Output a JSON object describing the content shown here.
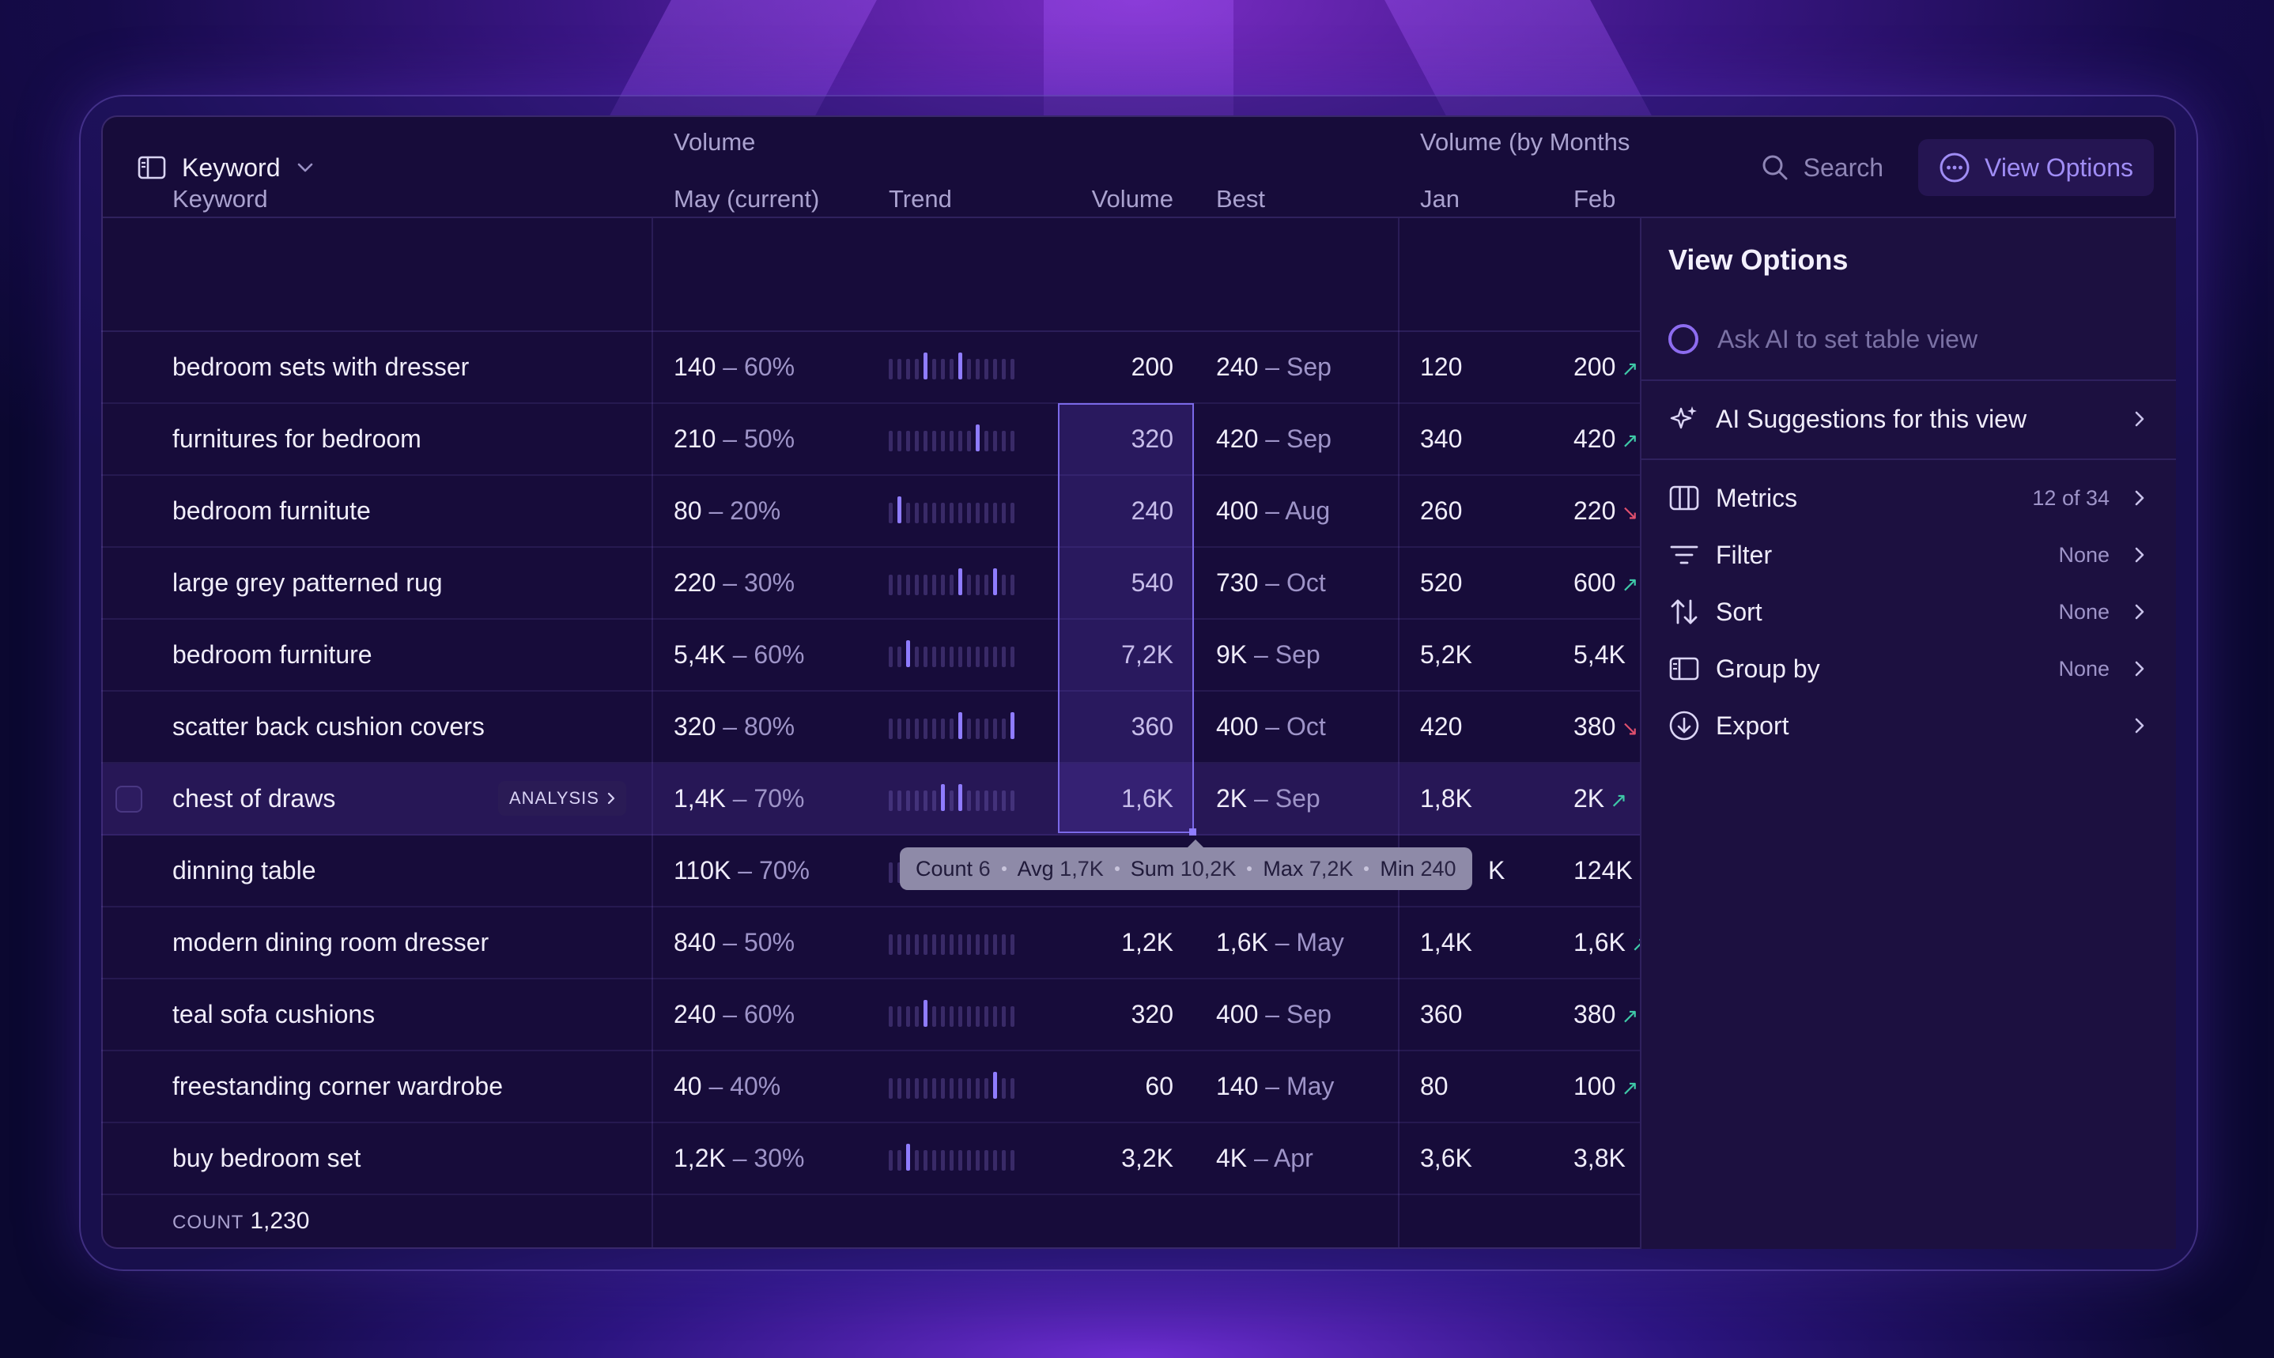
{
  "toolbar": {
    "group_select_label": "Keyword",
    "search_label": "Search",
    "view_options_label": "View Options"
  },
  "table": {
    "group_headers": {
      "volume": "Volume",
      "volume_by_month": "Volume (by Months"
    },
    "columns": {
      "keyword": "Keyword",
      "may": "May (current)",
      "trend": "Trend",
      "volume": "Volume",
      "best": "Best",
      "jan": "Jan",
      "feb": "Feb"
    },
    "rows": [
      {
        "keyword": "bedroom sets with dresser",
        "may": "140",
        "pct": "– 60%",
        "trend": [
          0,
          0,
          0,
          0,
          1,
          0,
          0,
          0,
          1,
          0,
          0,
          0,
          0,
          0,
          0
        ],
        "volume": "200",
        "best": "240",
        "best_month": "– Sep",
        "jan": "120",
        "feb": "200",
        "feb_dir": "up"
      },
      {
        "keyword": "furnitures for bedroom",
        "may": "210",
        "pct": "– 50%",
        "trend": [
          0,
          0,
          0,
          0,
          0,
          0,
          0,
          0,
          0,
          0,
          1,
          0,
          0,
          0,
          0
        ],
        "volume": "320",
        "best": "420",
        "best_month": "– Sep",
        "jan": "340",
        "feb": "420",
        "feb_dir": "up"
      },
      {
        "keyword": "bedroom furnitute",
        "may": "80",
        "pct": "– 20%",
        "trend": [
          0,
          1,
          0,
          0,
          0,
          0,
          0,
          0,
          0,
          0,
          0,
          0,
          0,
          0,
          0
        ],
        "volume": "240",
        "best": "400",
        "best_month": "– Aug",
        "jan": "260",
        "feb": "220",
        "feb_dir": "down"
      },
      {
        "keyword": "large grey patterned rug",
        "may": "220",
        "pct": "– 30%",
        "trend": [
          0,
          0,
          0,
          0,
          0,
          0,
          0,
          0,
          1,
          0,
          0,
          0,
          1,
          0,
          0
        ],
        "volume": "540",
        "best": "730",
        "best_month": "– Oct",
        "jan": "520",
        "feb": "600",
        "feb_dir": "up"
      },
      {
        "keyword": "bedroom furniture",
        "may": "5,4K",
        "pct": "– 60%",
        "trend": [
          0,
          0,
          1,
          0,
          0,
          0,
          0,
          0,
          0,
          0,
          0,
          0,
          0,
          0,
          0
        ],
        "volume": "7,2K",
        "best": "9K",
        "best_month": "– Sep",
        "jan": "5,2K",
        "feb": "5,4K",
        "feb_dir": ""
      },
      {
        "keyword": "scatter back cushion covers",
        "may": "320",
        "pct": "– 80%",
        "trend": [
          0,
          0,
          0,
          0,
          0,
          0,
          0,
          0,
          1,
          0,
          0,
          0,
          0,
          0,
          1
        ],
        "volume": "360",
        "best": "400",
        "best_month": "– Oct",
        "jan": "420",
        "feb": "380",
        "feb_dir": "down"
      },
      {
        "keyword": "chest of draws",
        "may": "1,4K",
        "pct": "– 70%",
        "trend": [
          0,
          0,
          0,
          0,
          0,
          0,
          1,
          0,
          1,
          0,
          0,
          0,
          0,
          0,
          0
        ],
        "volume": "1,6K",
        "best": "2K",
        "best_month": "– Sep",
        "jan": "1,8K",
        "feb": "2K",
        "feb_dir": "up",
        "badge": "ANALYSIS"
      },
      {
        "keyword": "dinning table",
        "may": "110K",
        "pct": "– 70%",
        "trend": [
          0,
          0,
          0,
          0,
          0,
          0,
          0,
          0,
          0,
          0,
          0,
          0,
          0,
          0,
          0
        ],
        "volume": "",
        "best": "",
        "best_month": "",
        "jan": "K",
        "feb": "124K",
        "feb_dir": ""
      },
      {
        "keyword": "modern dining room dresser",
        "may": "840",
        "pct": "– 50%",
        "trend": [
          0,
          0,
          0,
          0,
          0,
          0,
          0,
          0,
          0,
          0,
          0,
          0,
          0,
          0,
          0
        ],
        "volume": "1,2K",
        "best": "1,6K",
        "best_month": "– May",
        "jan": "1,4K",
        "feb": "1,6K",
        "feb_dir": "up"
      },
      {
        "keyword": "teal sofa cushions",
        "may": "240",
        "pct": "– 60%",
        "trend": [
          0,
          0,
          0,
          0,
          1,
          0,
          0,
          0,
          0,
          0,
          0,
          0,
          0,
          0,
          0
        ],
        "volume": "320",
        "best": "400",
        "best_month": "– Sep",
        "jan": "360",
        "feb": "380",
        "feb_dir": "up"
      },
      {
        "keyword": "freestanding corner wardrobe",
        "may": "40",
        "pct": "– 40%",
        "trend": [
          0,
          0,
          0,
          0,
          0,
          0,
          0,
          0,
          0,
          0,
          0,
          0,
          1,
          0,
          0
        ],
        "volume": "60",
        "best": "140",
        "best_month": "– May",
        "jan": "80",
        "feb": "100",
        "feb_dir": "up"
      },
      {
        "keyword": "buy bedroom set",
        "may": "1,2K",
        "pct": "– 30%",
        "trend": [
          0,
          0,
          1,
          0,
          0,
          0,
          0,
          0,
          0,
          0,
          0,
          0,
          0,
          0,
          0
        ],
        "volume": "3,2K",
        "best": "4K",
        "best_month": "– Apr",
        "jan": "3,6K",
        "feb": "3,8K",
        "feb_dir": ""
      }
    ],
    "count_label": "COUNT",
    "count_value": "1,230"
  },
  "tooltip": [
    {
      "label": "Count",
      "value": "6"
    },
    {
      "label": "Avg",
      "value": "1,7K"
    },
    {
      "label": "Sum",
      "value": "10,2K"
    },
    {
      "label": "Max",
      "value": "7,2K"
    },
    {
      "label": "Min",
      "value": "240"
    }
  ],
  "view_options": {
    "title": "View Options",
    "ai_placeholder": "Ask AI to set table view",
    "items": [
      {
        "id": "ai",
        "icon": "sparkle-icon",
        "label": "AI Suggestions for this view",
        "value": ""
      },
      {
        "id": "metrics",
        "icon": "columns-icon",
        "label": "Metrics",
        "value": "12 of 34"
      },
      {
        "id": "filter",
        "icon": "filter-icon",
        "label": "Filter",
        "value": "None"
      },
      {
        "id": "sort",
        "icon": "sort-icon",
        "label": "Sort",
        "value": "None"
      },
      {
        "id": "group",
        "icon": "group-icon",
        "label": "Group by",
        "value": "None"
      },
      {
        "id": "export",
        "icon": "download-icon",
        "label": "Export",
        "value": ""
      }
    ]
  },
  "colors": {
    "accent": "#8f7cff",
    "up": "#3ec9a7",
    "down": "#e0506e"
  }
}
